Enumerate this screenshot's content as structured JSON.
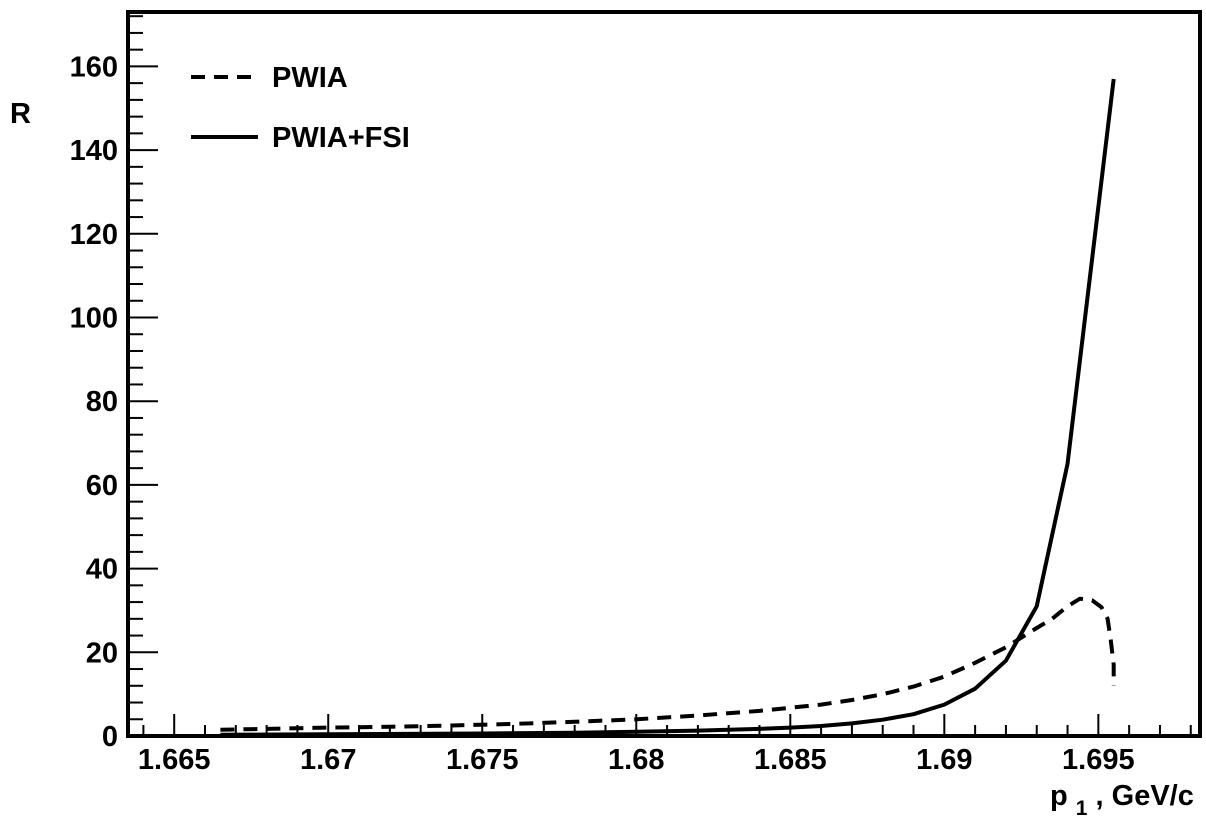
{
  "chart_data": {
    "type": "line",
    "ylabel": "R",
    "xlabel_main": "p",
    "xlabel_sub": "1",
    "xlabel_unit": ", GeV/c",
    "xlim": [
      1.6635,
      1.6983
    ],
    "ylim": [
      0,
      173
    ],
    "x_ticks": [
      {
        "value": 1.665,
        "label": "1.665"
      },
      {
        "value": 1.67,
        "label": "1.67"
      },
      {
        "value": 1.675,
        "label": "1.675"
      },
      {
        "value": 1.68,
        "label": "1.68"
      },
      {
        "value": 1.685,
        "label": "1.685"
      },
      {
        "value": 1.69,
        "label": "1.69"
      },
      {
        "value": 1.695,
        "label": "1.695"
      }
    ],
    "y_ticks": [
      {
        "value": 0,
        "label": "0"
      },
      {
        "value": 20,
        "label": "20"
      },
      {
        "value": 40,
        "label": "40"
      },
      {
        "value": 60,
        "label": "60"
      },
      {
        "value": 80,
        "label": "80"
      },
      {
        "value": 100,
        "label": "100"
      },
      {
        "value": 120,
        "label": "120"
      },
      {
        "value": 140,
        "label": "140"
      },
      {
        "value": 160,
        "label": "160"
      }
    ],
    "legend_position": "top-left",
    "series": [
      {
        "name": "PWIA",
        "style": "dashed",
        "color": "#000000",
        "points": [
          [
            1.6665,
            1.5
          ],
          [
            1.668,
            1.7
          ],
          [
            1.67,
            2.0
          ],
          [
            1.672,
            2.2
          ],
          [
            1.674,
            2.5
          ],
          [
            1.676,
            2.9
          ],
          [
            1.678,
            3.4
          ],
          [
            1.68,
            4.0
          ],
          [
            1.682,
            4.9
          ],
          [
            1.684,
            6.0
          ],
          [
            1.686,
            7.5
          ],
          [
            1.687,
            8.6
          ],
          [
            1.688,
            10.0
          ],
          [
            1.689,
            11.8
          ],
          [
            1.69,
            14.2
          ],
          [
            1.691,
            17.5
          ],
          [
            1.692,
            21.2
          ],
          [
            1.693,
            25.8
          ],
          [
            1.6935,
            28.0
          ],
          [
            1.694,
            31.0
          ],
          [
            1.6944,
            32.8
          ],
          [
            1.6948,
            32.4
          ],
          [
            1.6951,
            30.8
          ],
          [
            1.6953,
            28.0
          ],
          [
            1.6954,
            23.0
          ],
          [
            1.6955,
            17.0
          ],
          [
            1.6955,
            12.0
          ]
        ]
      },
      {
        "name": "PWIA+FSI",
        "style": "solid",
        "color": "#000000",
        "points": [
          [
            1.6665,
            0.3
          ],
          [
            1.67,
            0.4
          ],
          [
            1.675,
            0.6
          ],
          [
            1.678,
            0.8
          ],
          [
            1.68,
            1.0
          ],
          [
            1.682,
            1.3
          ],
          [
            1.684,
            1.7
          ],
          [
            1.685,
            2.0
          ],
          [
            1.686,
            2.4
          ],
          [
            1.687,
            3.0
          ],
          [
            1.688,
            3.9
          ],
          [
            1.689,
            5.2
          ],
          [
            1.69,
            7.5
          ],
          [
            1.691,
            11.3
          ],
          [
            1.692,
            18.0
          ],
          [
            1.693,
            31.0
          ],
          [
            1.694,
            65.0
          ],
          [
            1.6955,
            157.0
          ]
        ]
      }
    ]
  }
}
